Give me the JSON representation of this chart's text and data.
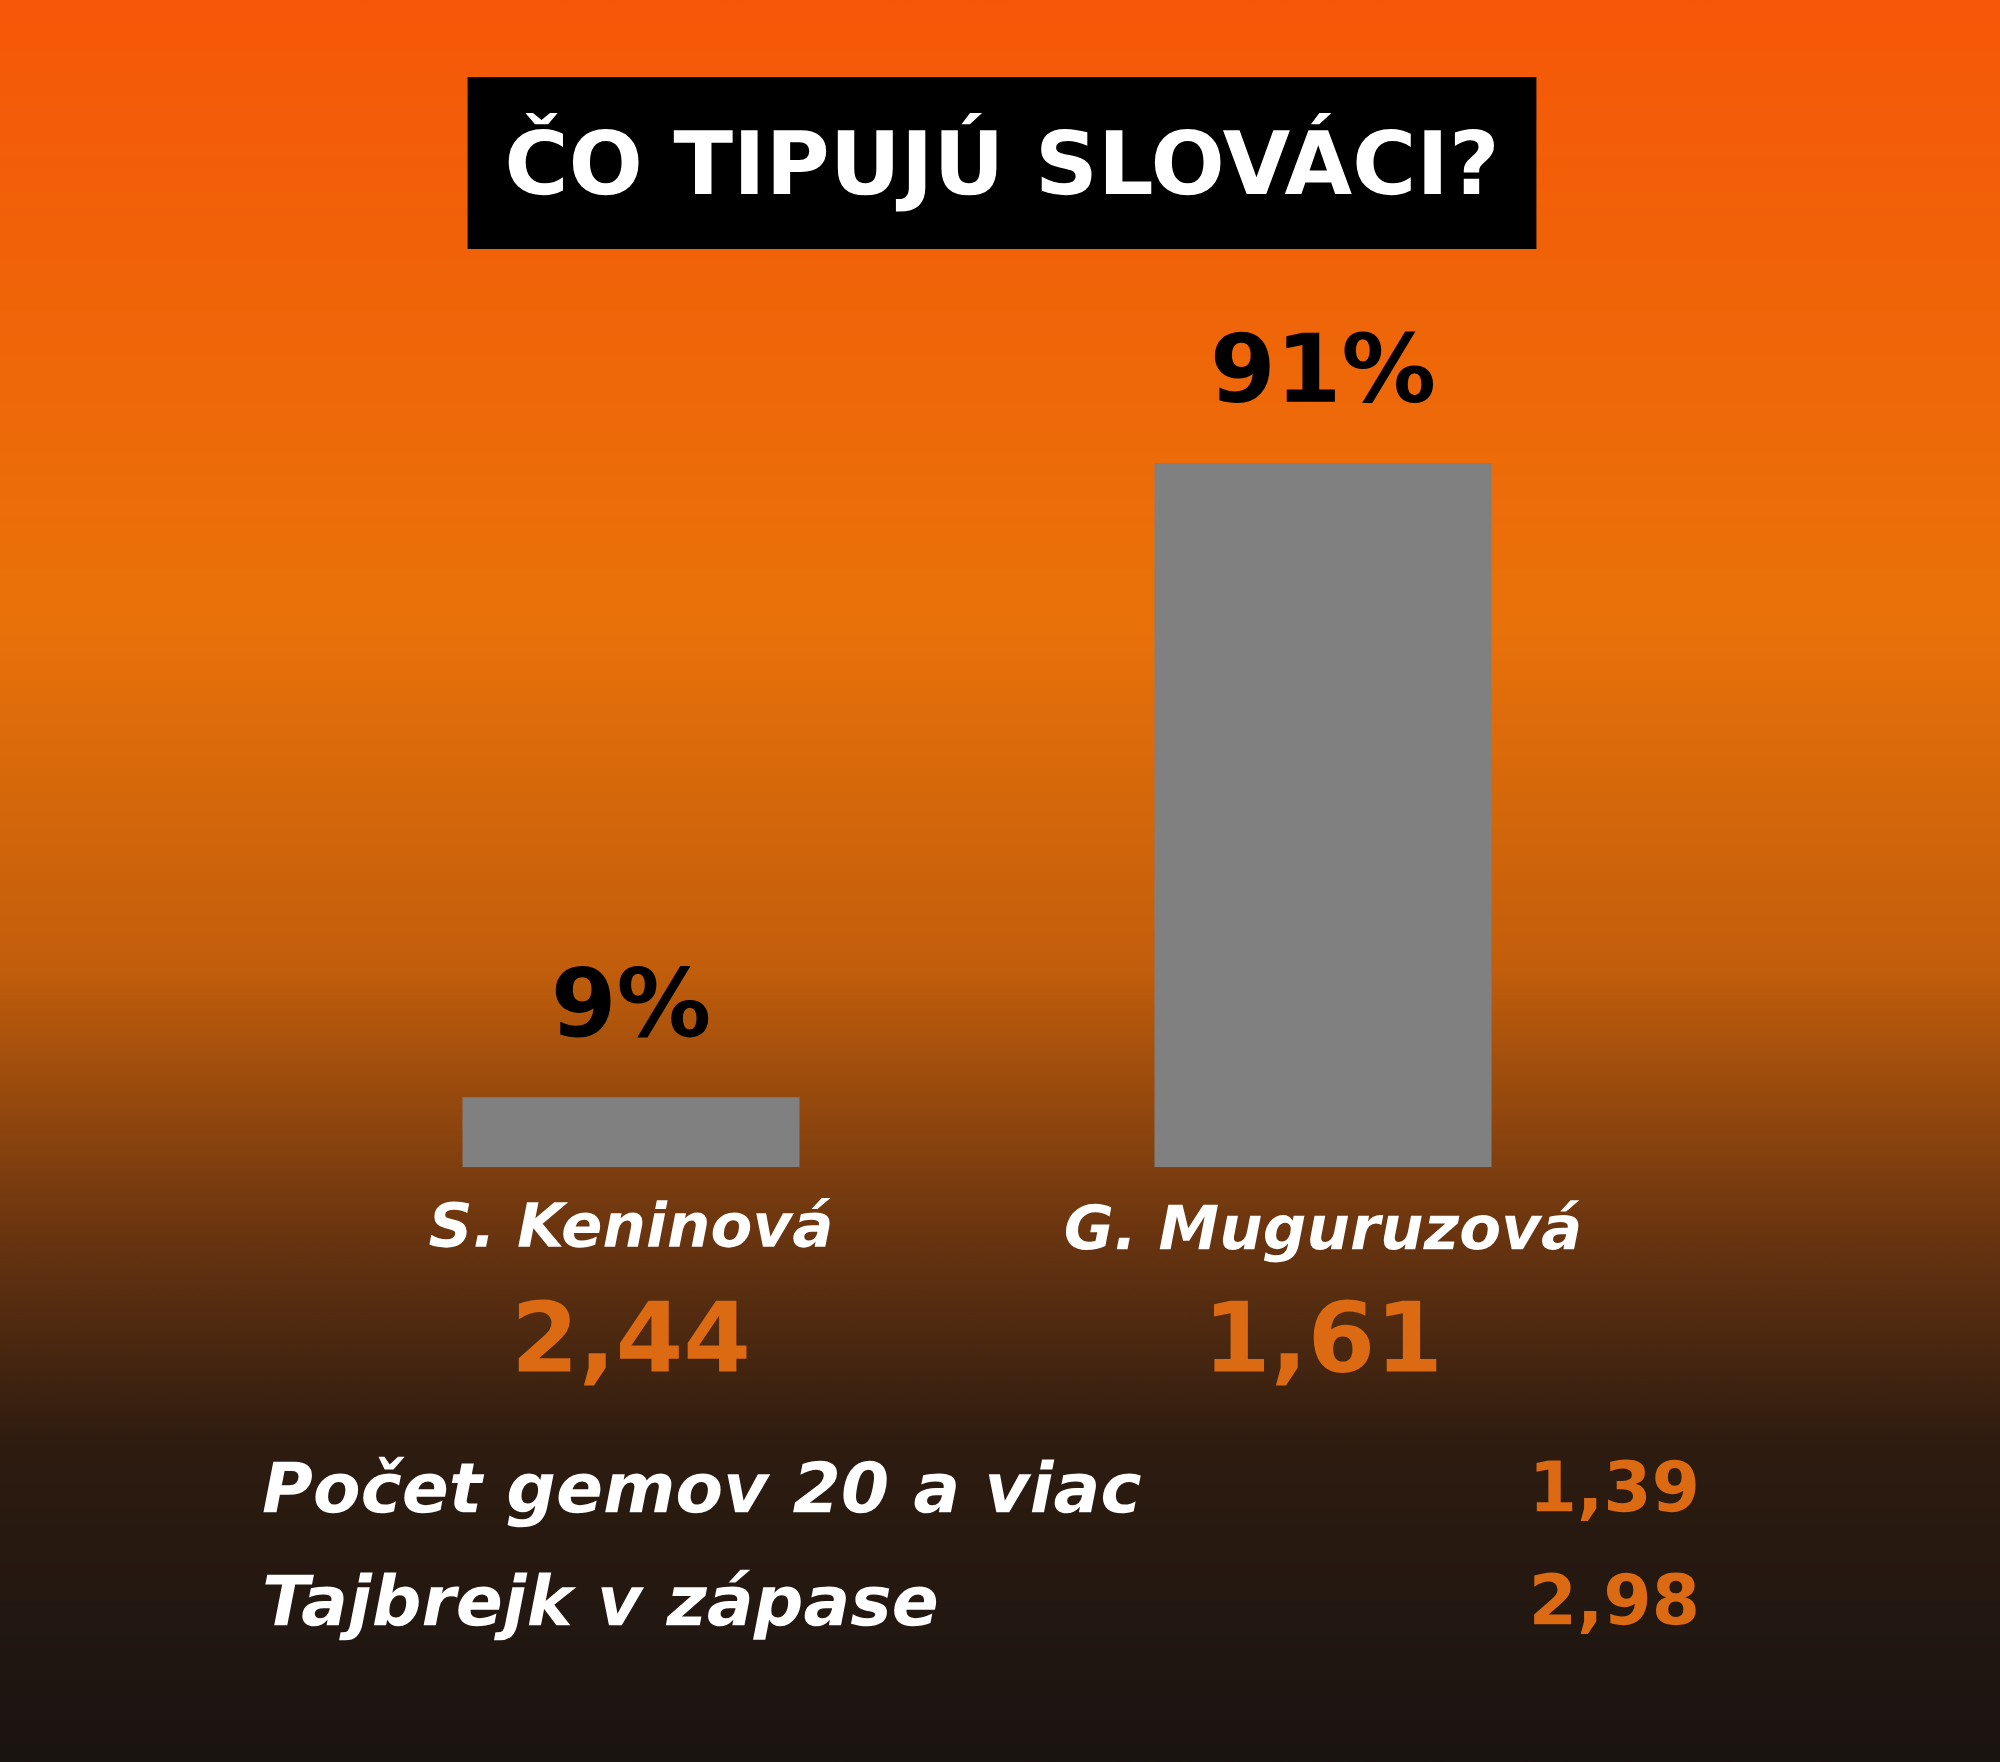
{
  "chart_data": {
    "type": "bar",
    "title": "ČO TIPUJÚ SLOVÁCI?",
    "categories": [
      "S. Keninová",
      "G. Muguruzová"
    ],
    "values": [
      9,
      91
    ],
    "color": "#808080",
    "value_labels": [
      "9%",
      "91%"
    ],
    "tick_labels": "x",
    "legend": false,
    "annotations": [
      "2,44",
      "1,61",
      "Počet gemov 20 a viac",
      "1,39",
      "Tajbrejk v zápase",
      "2,98"
    ]
  }
}
